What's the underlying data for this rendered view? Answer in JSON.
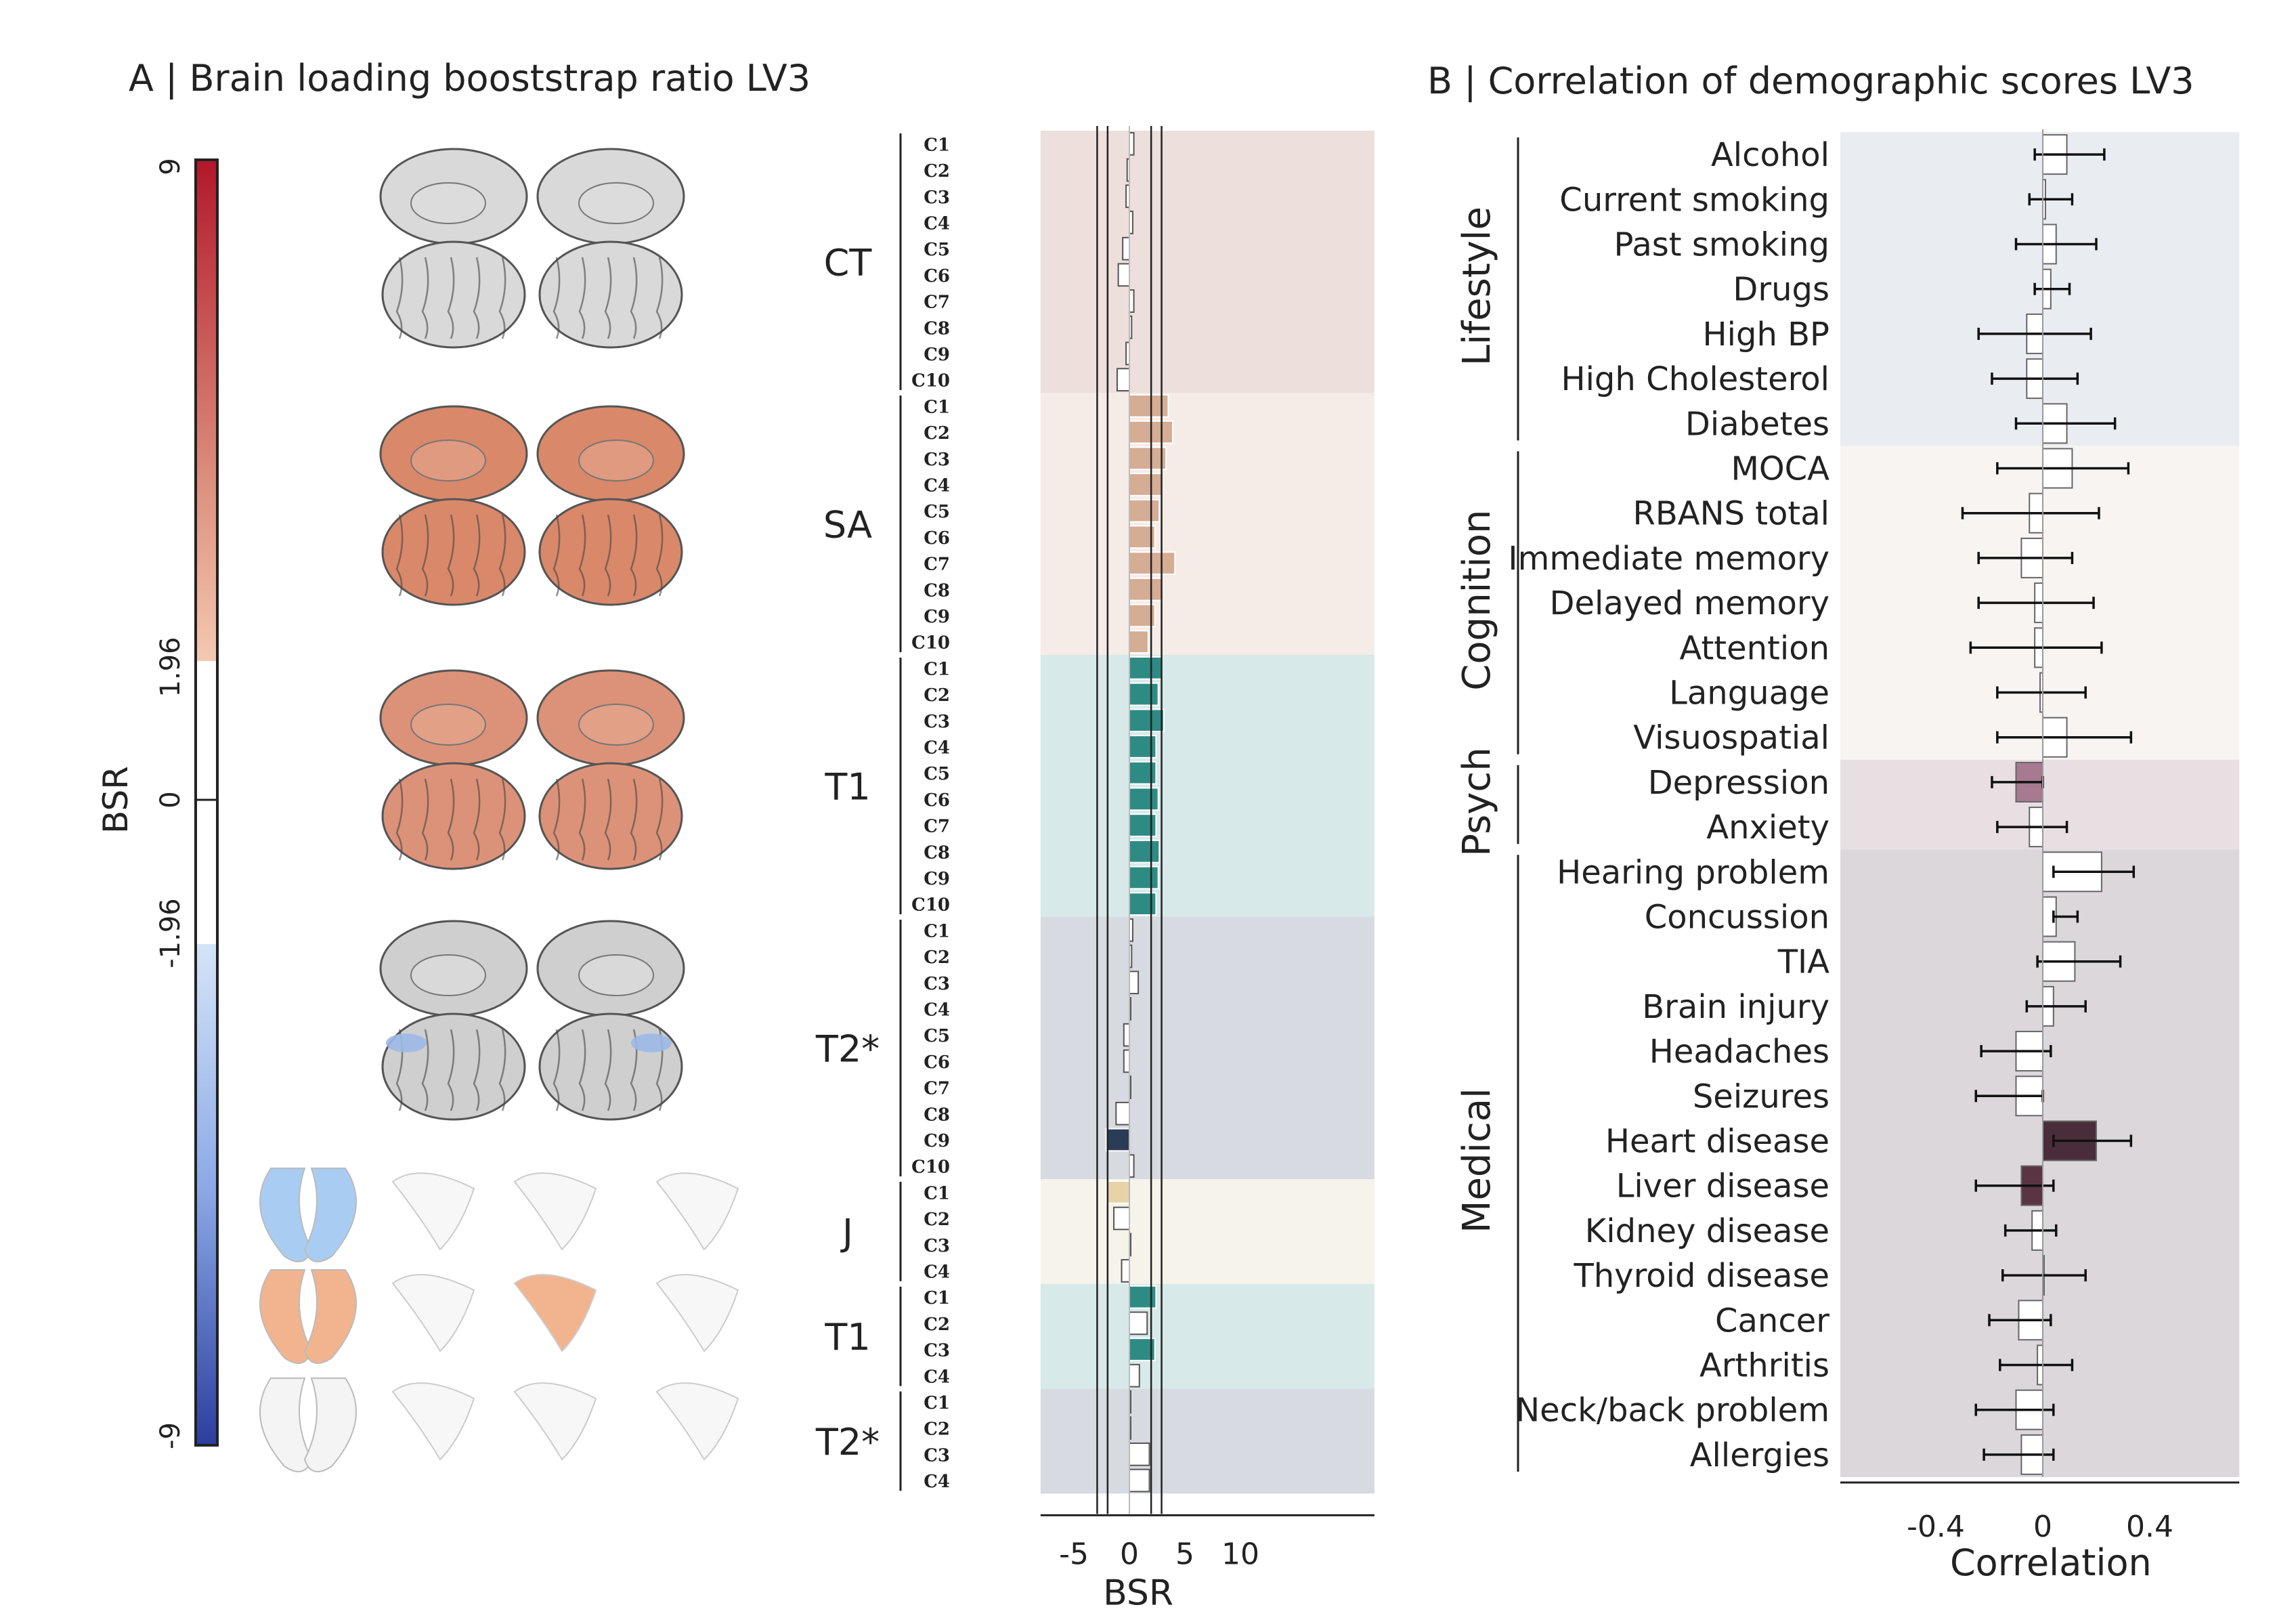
{
  "panel_a": {
    "title": "A | Brain loading booststrap ratio LV3",
    "colorbar": {
      "label": "BSR",
      "ticks": [
        "9",
        "1.96",
        "0",
        "-1.96",
        "-9"
      ],
      "colors": {
        "high": "#b2182b",
        "mid_high": "#f4a582",
        "white": "#ffffff",
        "mid_low": "#92c5de",
        "low": "#2c3e9e"
      }
    },
    "brain_rows": [
      {
        "group": "CT",
        "color": "#d9d9d9",
        "medial_color": "#dcdcdc",
        "highlight": ""
      },
      {
        "group": "SA",
        "color": "#d9886a",
        "medial_color": "#e09a80",
        "highlight": ""
      },
      {
        "group": "T1",
        "color": "#dc9278",
        "medial_color": "#e2a087",
        "highlight": ""
      },
      {
        "group": "T2*",
        "color": "#cfcfcf",
        "medial_color": "#d9d9d9",
        "highlight": "#9bb8e6"
      }
    ],
    "subcortical_rows": [
      {
        "color": "#a9cdf2"
      },
      {
        "color": "#f2b48e"
      },
      {
        "color": "#f4f4f4"
      }
    ]
  },
  "chart_data": [
    {
      "type": "bar",
      "orientation": "horizontal",
      "xlabel": "BSR",
      "xticks": [
        -5,
        0,
        5,
        10
      ],
      "xlim": [
        -8,
        11.5
      ],
      "reference_lines": [
        -2.9,
        -1.96,
        1.96,
        2.9
      ],
      "groups": [
        {
          "name": "CT",
          "bg": "#ecdfdc",
          "bar_color": "#ffffff",
          "categories": [
            "C1",
            "C2",
            "C3",
            "C4",
            "C5",
            "C6",
            "C7",
            "C8",
            "C9",
            "C10"
          ],
          "values": [
            0.4,
            -0.2,
            -0.3,
            0.3,
            -0.6,
            -1.0,
            0.4,
            0.2,
            -0.3,
            -1.1
          ]
        },
        {
          "name": "SA",
          "bg": "#f5ece8",
          "bar_color": "#d5ac94",
          "categories": [
            "C1",
            "C2",
            "C3",
            "C4",
            "C5",
            "C6",
            "C7",
            "C8",
            "C9",
            "C10"
          ],
          "values": [
            3.5,
            3.9,
            3.3,
            2.9,
            2.7,
            2.3,
            4.1,
            2.9,
            2.3,
            1.7
          ]
        },
        {
          "name": "T1",
          "bg": "#d8e9ea",
          "bar_color": "#2e8b84",
          "categories": [
            "C1",
            "C2",
            "C3",
            "C4",
            "C5",
            "C6",
            "C7",
            "C8",
            "C9",
            "C10"
          ],
          "values": [
            2.9,
            2.6,
            3.1,
            2.4,
            2.4,
            2.6,
            2.4,
            2.7,
            2.6,
            2.4
          ]
        },
        {
          "name": "T2*",
          "bg": "#d7dae0",
          "bar_color": "#ffffff",
          "categories": [
            "C1",
            "C2",
            "C3",
            "C4",
            "C5",
            "C6",
            "C7",
            "C8",
            "C9",
            "C10"
          ],
          "values": [
            0.3,
            0.2,
            0.8,
            0.1,
            -0.5,
            -0.5,
            0.1,
            -1.2,
            -2.1,
            0.4
          ],
          "highlight": {
            "index": 8,
            "color": "#2b3c57"
          }
        },
        {
          "name": "J",
          "bg": "#f6f3ea",
          "bar_color": "#ffffff",
          "categories": [
            "C1",
            "C2",
            "C3",
            "C4"
          ],
          "values": [
            -2.1,
            -1.4,
            0.1,
            -0.7
          ],
          "highlight": {
            "index": 0,
            "color": "#e8d2a8"
          }
        },
        {
          "name": "T1",
          "bg": "#d8e9ea",
          "bar_color": "#2e8b84",
          "categories": [
            "C1",
            "C2",
            "C3",
            "C4"
          ],
          "values": [
            2.4,
            1.6,
            2.3,
            0.9
          ],
          "plain_indices": [
            1,
            3
          ]
        },
        {
          "name": "T2*",
          "bg": "#d7dae0",
          "bar_color": "#ffffff",
          "categories": [
            "C1",
            "C2",
            "C3",
            "C4"
          ],
          "values": [
            0.1,
            0.1,
            1.8,
            1.8
          ]
        }
      ]
    },
    {
      "type": "bar",
      "orientation": "horizontal",
      "title": "B | Correlation of demographic scores LV3",
      "xlabel": "Correlation",
      "xticks": [
        -0.4,
        0,
        0.4
      ],
      "xtick_labels": [
        "-0.4",
        "0",
        "0.4"
      ],
      "xlim": [
        -0.6,
        0.75
      ],
      "groups": [
        {
          "name": "Lifestyle",
          "bg": "#e9edf2",
          "items": [
            {
              "label": "Alcohol",
              "value": 0.09,
              "lo": -0.03,
              "hi": 0.23
            },
            {
              "label": "Current smoking",
              "value": 0.01,
              "lo": -0.05,
              "hi": 0.11
            },
            {
              "label": "Past smoking",
              "value": 0.05,
              "lo": -0.1,
              "hi": 0.2
            },
            {
              "label": "Drugs",
              "value": 0.03,
              "lo": -0.03,
              "hi": 0.1
            },
            {
              "label": "High BP",
              "value": -0.06,
              "lo": -0.24,
              "hi": 0.18
            },
            {
              "label": "High Cholesterol",
              "value": -0.06,
              "lo": -0.19,
              "hi": 0.13
            },
            {
              "label": "Diabetes",
              "value": 0.09,
              "lo": -0.1,
              "hi": 0.27
            }
          ]
        },
        {
          "name": "Cognition",
          "bg": "#f7f4f1",
          "items": [
            {
              "label": "MOCA",
              "value": 0.11,
              "lo": -0.17,
              "hi": 0.32
            },
            {
              "label": "RBANS total",
              "value": -0.05,
              "lo": -0.3,
              "hi": 0.21
            },
            {
              "label": "Immediate memory",
              "value": -0.08,
              "lo": -0.24,
              "hi": 0.11
            },
            {
              "label": "Delayed memory",
              "value": -0.03,
              "lo": -0.24,
              "hi": 0.19
            },
            {
              "label": "Attention",
              "value": -0.03,
              "lo": -0.27,
              "hi": 0.22
            },
            {
              "label": "Language",
              "value": -0.01,
              "lo": -0.17,
              "hi": 0.16
            },
            {
              "label": "Visuospatial",
              "value": 0.09,
              "lo": -0.17,
              "hi": 0.33
            }
          ]
        },
        {
          "name": "Psych",
          "bg": "#e8dfe3",
          "items": [
            {
              "label": "Depression",
              "value": -0.1,
              "lo": -0.19,
              "hi": 0.0,
              "color": "#a77a92"
            },
            {
              "label": "Anxiety",
              "value": -0.05,
              "lo": -0.17,
              "hi": 0.09
            }
          ]
        },
        {
          "name": "Medical",
          "bg": "#dcd7da",
          "items": [
            {
              "label": "Hearing problem",
              "value": 0.22,
              "lo": 0.04,
              "hi": 0.34
            },
            {
              "label": "Concussion",
              "value": 0.05,
              "lo": 0.04,
              "hi": 0.13
            },
            {
              "label": "TIA",
              "value": 0.12,
              "lo": -0.02,
              "hi": 0.29
            },
            {
              "label": "Brain injury",
              "value": 0.04,
              "lo": -0.06,
              "hi": 0.16
            },
            {
              "label": "Headaches",
              "value": -0.1,
              "lo": -0.23,
              "hi": 0.03
            },
            {
              "label": "Seizures",
              "value": -0.1,
              "lo": -0.25,
              "hi": 0.0
            },
            {
              "label": "Heart disease",
              "value": 0.2,
              "lo": 0.04,
              "hi": 0.33,
              "color": "#4a2d3b"
            },
            {
              "label": "Liver disease",
              "value": -0.08,
              "lo": -0.25,
              "hi": 0.04,
              "color": "#5b3444"
            },
            {
              "label": "Kidney disease",
              "value": -0.04,
              "lo": -0.14,
              "hi": 0.05
            },
            {
              "label": "Thyroid disease",
              "value": 0.0,
              "lo": -0.15,
              "hi": 0.16
            },
            {
              "label": "Cancer",
              "value": -0.09,
              "lo": -0.2,
              "hi": 0.03
            },
            {
              "label": "Arthritis",
              "value": -0.02,
              "lo": -0.16,
              "hi": 0.11
            },
            {
              "label": "Neck/back problem",
              "value": -0.1,
              "lo": -0.25,
              "hi": 0.04
            },
            {
              "label": "Allergies",
              "value": -0.08,
              "lo": -0.22,
              "hi": 0.04
            }
          ]
        }
      ]
    }
  ]
}
